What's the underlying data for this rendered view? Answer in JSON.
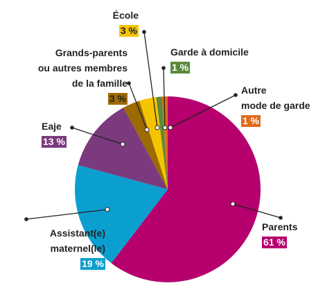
{
  "chart_data": {
    "type": "pie",
    "categories": [
      "Parents",
      "Assistant(e)\nmaternel(le)",
      "Eaje",
      "Grands-parents\nou autres membres\nde la famille",
      "École",
      "Garde à domicile",
      "Autre\nmode de garde"
    ],
    "values": [
      61,
      19,
      13,
      3,
      3,
      1,
      1
    ],
    "value_labels": [
      "61 %",
      "19 %",
      "13 %",
      "3 %",
      "3 %",
      "1 %",
      "1 %"
    ],
    "colors": [
      "#b5006e",
      "#0b9fd0",
      "#7b3a7e",
      "#9b6a00",
      "#f5c400",
      "#5a8a3a",
      "#e06a1e"
    ]
  }
}
